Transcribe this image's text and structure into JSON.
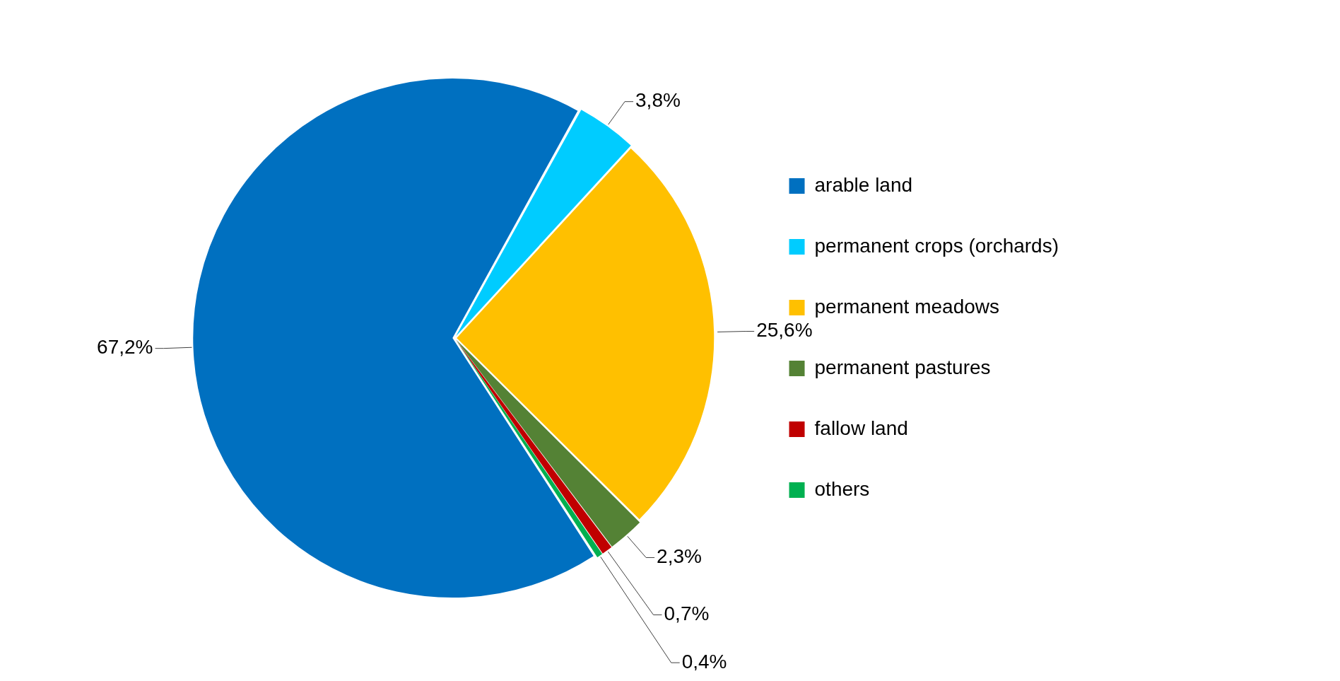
{
  "chart_data": {
    "type": "pie",
    "categories": [
      "arable land",
      "permanent crops (orchards)",
      "permanent meadows",
      "permanent pastures",
      "fallow land",
      "others"
    ],
    "values": [
      67.2,
      3.8,
      25.6,
      2.3,
      0.7,
      0.4
    ],
    "colors": [
      "#0070c0",
      "#00ccff",
      "#ffc000",
      "#548235",
      "#c00000",
      "#00b050"
    ],
    "value_labels": [
      "67,2%",
      "3,8%",
      "25,6%",
      "2,3%",
      "0,7%",
      "0,4%"
    ],
    "legend": "right"
  }
}
